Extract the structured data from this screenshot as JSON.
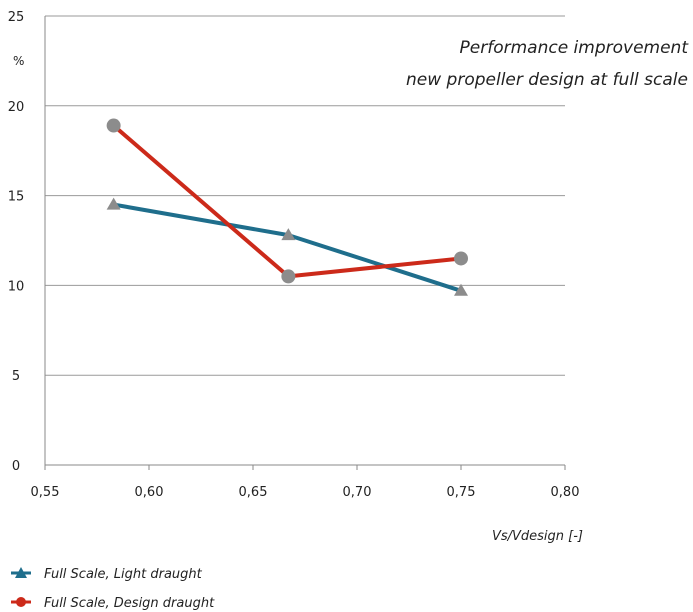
{
  "chart_data": {
    "type": "line",
    "title_lines": [
      "Performance improvement",
      "new propeller design at full scale"
    ],
    "xlabel": "Vs/Vdesign [-]",
    "ylabel": "%",
    "xlim": [
      0.55,
      0.8
    ],
    "ylim": [
      0,
      25
    ],
    "x_ticks": [
      "0,55",
      "0,60",
      "0,65",
      "0,70",
      "0,75",
      "0,80"
    ],
    "y_ticks": [
      "0",
      "5",
      "10",
      "15",
      "20",
      "25"
    ],
    "grid": true,
    "legend_position": "bottom-left",
    "series": [
      {
        "name": "Full Scale, Light draught",
        "x": [
          0.583,
          0.667,
          0.75
        ],
        "values": [
          14.5,
          12.8,
          9.7
        ],
        "line_color": "#1f6e8c",
        "marker": "triangle",
        "marker_color": "#8c8c8c"
      },
      {
        "name": "Full Scale, Design draught",
        "x": [
          0.583,
          0.667,
          0.75
        ],
        "values": [
          18.9,
          10.5,
          11.5
        ],
        "line_color": "#cc2a1a",
        "marker": "circle",
        "marker_color": "#8c8c8c"
      }
    ]
  }
}
